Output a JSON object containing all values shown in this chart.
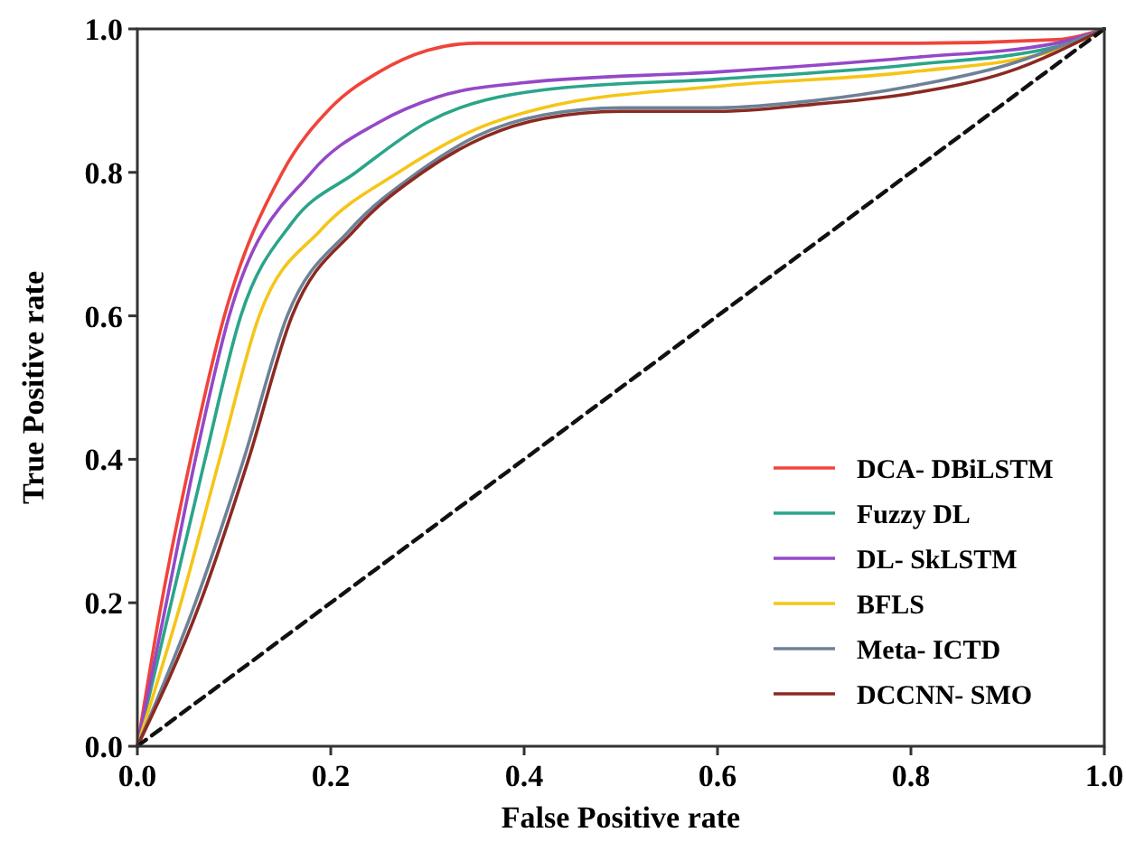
{
  "chart_data": {
    "type": "line",
    "xlabel": "False Positive rate",
    "ylabel": "True Positive rate",
    "xlim": [
      0,
      1
    ],
    "ylim": [
      0,
      1
    ],
    "xticks": [
      {
        "value": 0,
        "label": "0.0"
      },
      0.2,
      0.4,
      0.6,
      0.8,
      {
        "value": 1,
        "label": "1.0"
      }
    ],
    "yticks": [
      {
        "value": 0,
        "label": "0.0"
      },
      0.2,
      0.4,
      0.6,
      0.8,
      {
        "value": 1,
        "label": "1.0"
      }
    ],
    "grid": false,
    "legend": "bottom right",
    "marker": "none",
    "series": [
      {
        "name": "DCA- DBiLSTM",
        "color": "#f0443a",
        "x": [
          0,
          0.025,
          0.055,
          0.09,
          0.15,
          0.2,
          0.25,
          0.3,
          0.35,
          0.5,
          0.8,
          0.95,
          1
        ],
        "values": [
          0,
          0.2,
          0.4,
          0.6,
          0.8,
          0.89,
          0.94,
          0.97,
          0.98,
          0.98,
          0.98,
          0.985,
          1
        ]
      },
      {
        "name": "Fuzzy DL",
        "color": "#2aa58a",
        "x": [
          0,
          0.035,
          0.07,
          0.107,
          0.16,
          0.226,
          0.3,
          0.42,
          0.6,
          0.8,
          0.95,
          1
        ],
        "values": [
          0,
          0.2,
          0.4,
          0.6,
          0.73,
          0.8,
          0.87,
          0.915,
          0.93,
          0.95,
          0.975,
          1
        ]
      },
      {
        "name": "DL- SkLSTM",
        "color": "#9548c8",
        "x": [
          0,
          0.03,
          0.06,
          0.095,
          0.18,
          0.25,
          0.31,
          0.4,
          0.6,
          0.8,
          0.95,
          1
        ],
        "values": [
          0,
          0.2,
          0.4,
          0.6,
          0.8,
          0.87,
          0.905,
          0.925,
          0.94,
          0.96,
          0.98,
          1
        ]
      },
      {
        "name": "BFLS",
        "color": "#f5c518",
        "x": [
          0,
          0.045,
          0.085,
          0.126,
          0.19,
          0.27,
          0.35,
          0.42,
          0.6,
          0.8,
          0.95,
          1
        ],
        "values": [
          0,
          0.2,
          0.4,
          0.6,
          0.72,
          0.8,
          0.86,
          0.89,
          0.92,
          0.94,
          0.97,
          1
        ]
      },
      {
        "name": "Meta- ICTD",
        "color": "#6e8196",
        "x": [
          0,
          0.06,
          0.11,
          0.155,
          0.22,
          0.29,
          0.35,
          0.42,
          0.5,
          0.6,
          0.7,
          0.8,
          0.9,
          1
        ],
        "values": [
          0,
          0.2,
          0.4,
          0.6,
          0.72,
          0.8,
          0.85,
          0.88,
          0.89,
          0.89,
          0.9,
          0.92,
          0.95,
          1
        ]
      },
      {
        "name": "DCCNN- SMO",
        "color": "#8b2a22",
        "x": [
          0,
          0.065,
          0.115,
          0.16,
          0.225,
          0.295,
          0.36,
          0.42,
          0.5,
          0.6,
          0.7,
          0.8,
          0.9,
          1
        ],
        "values": [
          0,
          0.2,
          0.4,
          0.6,
          0.72,
          0.8,
          0.85,
          0.875,
          0.885,
          0.885,
          0.895,
          0.91,
          0.94,
          1
        ]
      },
      {
        "color": "#111111",
        "line_style": "dashed",
        "x": [
          0,
          1
        ],
        "values": [
          0,
          1
        ]
      }
    ]
  }
}
